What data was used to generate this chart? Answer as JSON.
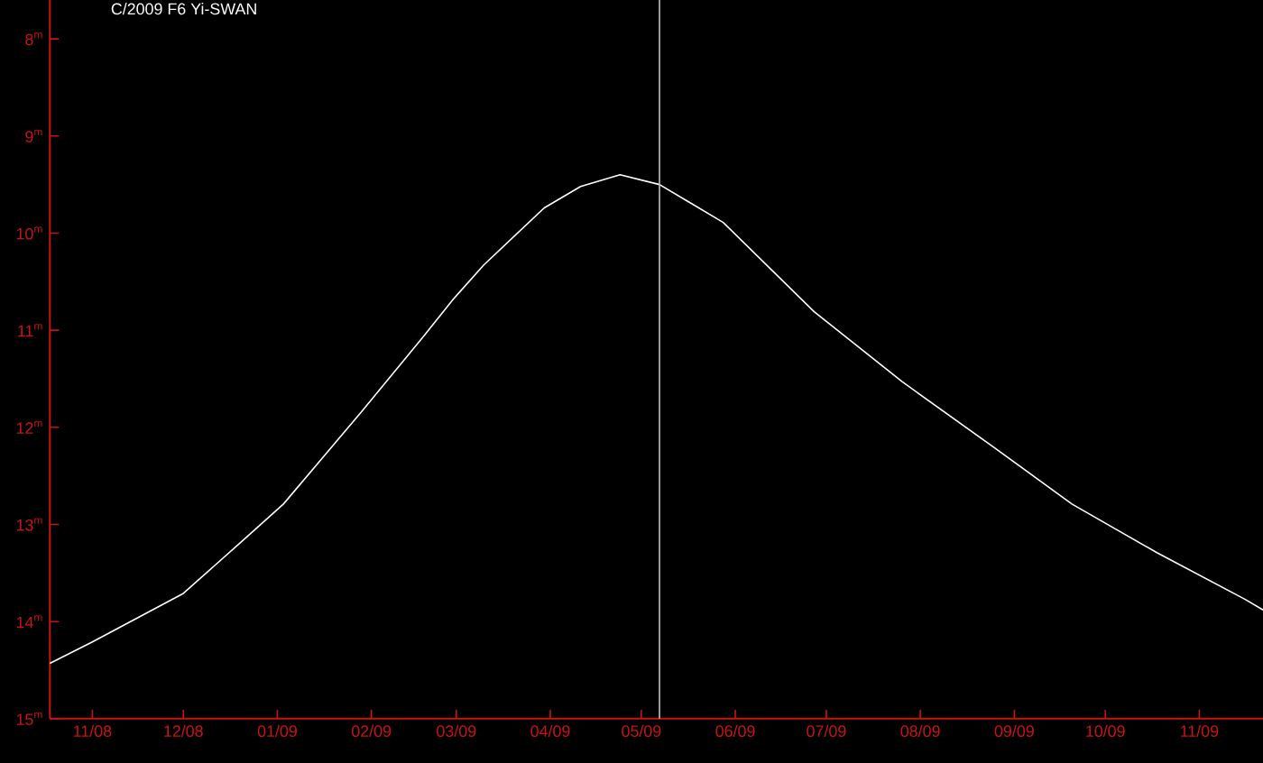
{
  "chart_data": {
    "type": "line",
    "title": "C/2009 F6 Yi-SWAN",
    "x": [
      "2008-10-18",
      "2008-11-01",
      "2008-12-01",
      "2008-12-19",
      "2009-01-03",
      "2009-01-29",
      "2009-02-18",
      "2009-02-28",
      "2009-03-10",
      "2009-03-30",
      "2009-04-11",
      "2009-04-24",
      "2009-05-07",
      "2009-05-28",
      "2009-06-27",
      "2009-07-26",
      "2009-08-25",
      "2009-09-20",
      "2009-10-18",
      "2009-11-16",
      "2009-11-22"
    ],
    "series": [
      {
        "color": "#ffffff",
        "values": [
          14.43,
          14.21,
          13.71,
          13.21,
          12.79,
          11.83,
          11.07,
          10.68,
          10.33,
          9.74,
          9.52,
          9.4,
          9.5,
          9.89,
          10.81,
          11.53,
          12.2,
          12.79,
          13.29,
          13.77,
          13.88
        ]
      }
    ],
    "xlim": [
      "2008-10-18",
      "2009-11-22"
    ],
    "xticks": [
      {
        "value": "2008-11-01",
        "label": "11/08"
      },
      {
        "value": "2008-12-01",
        "label": "12/08"
      },
      {
        "value": "2009-01-01",
        "label": "01/09"
      },
      {
        "value": "2009-02-01",
        "label": "02/09"
      },
      {
        "value": "2009-03-01",
        "label": "03/09"
      },
      {
        "value": "2009-04-01",
        "label": "04/09"
      },
      {
        "value": "2009-05-01",
        "label": "05/09"
      },
      {
        "value": "2009-06-01",
        "label": "06/09"
      },
      {
        "value": "2009-07-01",
        "label": "07/09"
      },
      {
        "value": "2009-08-01",
        "label": "08/09"
      },
      {
        "value": "2009-09-01",
        "label": "09/09"
      },
      {
        "value": "2009-10-01",
        "label": "10/09"
      },
      {
        "value": "2009-11-01",
        "label": "11/09"
      }
    ],
    "ylim": [
      15,
      7.6
    ],
    "yticks": [
      {
        "value": 8,
        "label": "8$^{m}$"
      },
      {
        "value": 9,
        "label": "9$^{m}$"
      },
      {
        "value": 10,
        "label": "10$^{m}$"
      },
      {
        "value": 11,
        "label": "11$^{m}$"
      },
      {
        "value": 12,
        "label": "12$^{m}$"
      },
      {
        "value": 13,
        "label": "13$^{m}$"
      },
      {
        "value": 14,
        "label": "14$^{m}$"
      },
      {
        "value": 15,
        "label": "15$^{m}$"
      }
    ],
    "ref_lines": [
      {
        "axis": "x",
        "value": "2009-05-07",
        "color": "#c0c0c0"
      }
    ],
    "grid": false,
    "marker": "none"
  }
}
